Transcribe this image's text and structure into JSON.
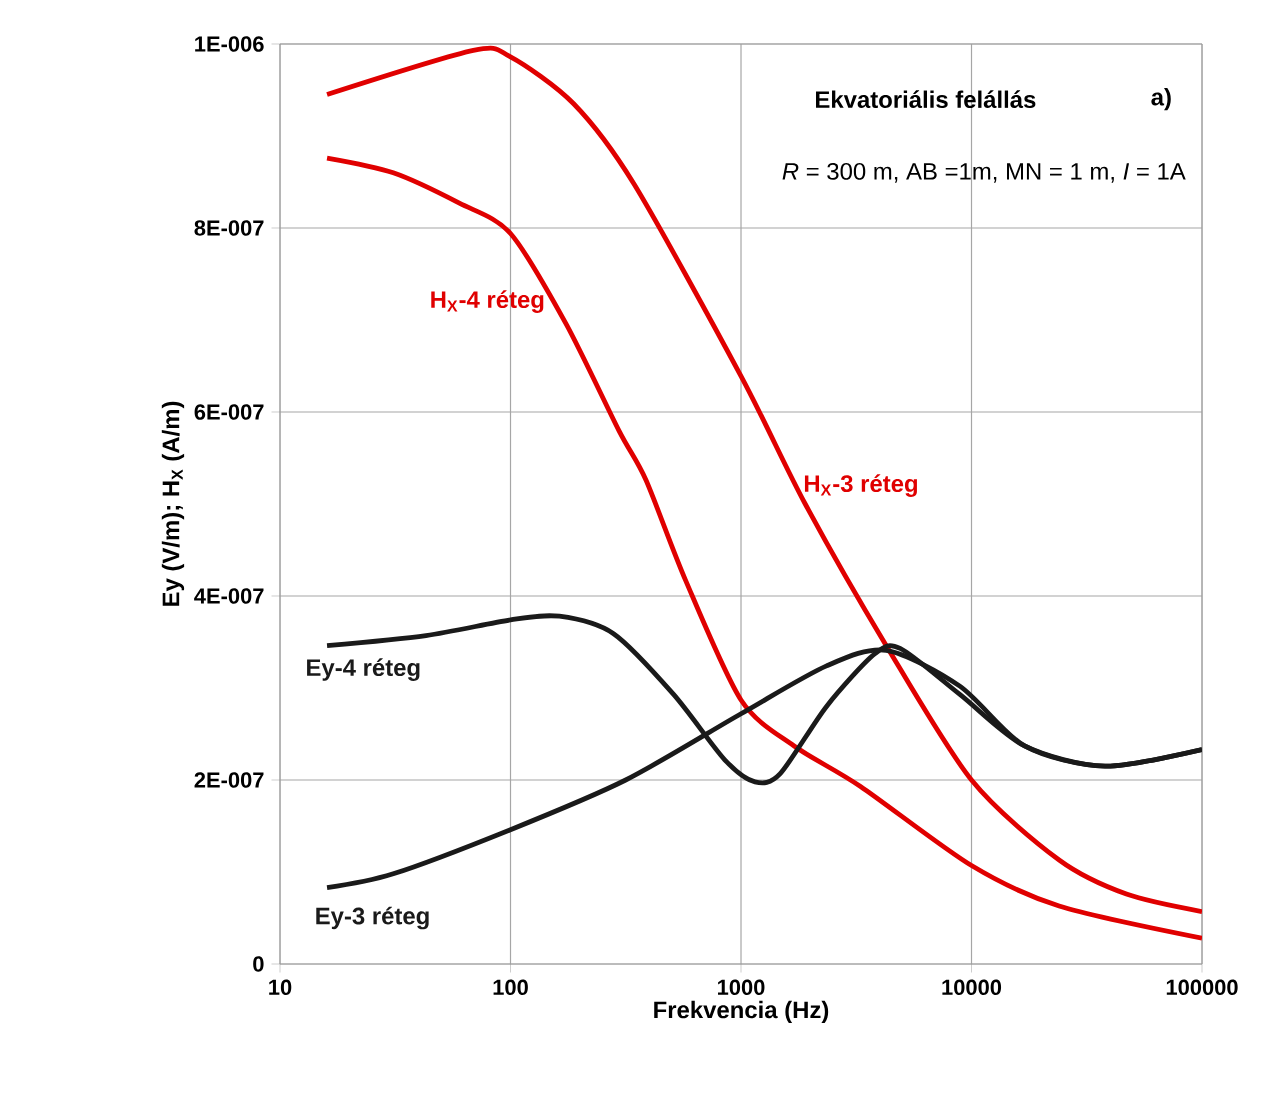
{
  "chart_data": {
    "type": "line",
    "xlabel": "Frekvencia (Hz)",
    "ylabel": "Ey (V/m);  H$_{X}$ (A/m)",
    "annotations": [
      "Ekvatoriális felállás",
      "a)",
      "*R* = 300 m, AB =1m, MN = 1 m, *I* = 1A"
    ],
    "log": "x",
    "grid": true,
    "line_style": "solid",
    "xlim": [
      10,
      100000
    ],
    "xticks": [
      10,
      100,
      1000,
      10000,
      100000
    ],
    "ylim": [
      0,
      1e-06
    ],
    "yticks": [
      0,
      {
        "value": 2e-07,
        "label": "2E-007"
      },
      {
        "value": 4e-07,
        "label": "4E-007"
      },
      {
        "value": 6e-07,
        "label": "6E-007"
      },
      {
        "value": 8e-07,
        "label": "8E-007"
      },
      {
        "value": 1e-06,
        "label": "1E-006"
      }
    ],
    "series": [
      {
        "name": "H$_{X}$-3 réteg",
        "color": "#e00000",
        "x": [
          16,
          69,
          100,
          188,
          343,
          1000,
          1900,
          4270,
          10000,
          24000,
          47000,
          100000
        ],
        "values": [
          9.45e-07,
          9.93e-07,
          9.86e-07,
          9.35e-07,
          8.48e-07,
          6.39e-07,
          5e-07,
          3.46e-07,
          2e-07,
          1.13e-07,
          7.6e-08,
          5.7e-08
        ]
      },
      {
        "name": "H$_{X}$-4 réteg",
        "color": "#e00000",
        "x": [
          16,
          31,
          60,
          100,
          174,
          295,
          387,
          575,
          1000,
          1700,
          3300,
          10000,
          24000,
          100000
        ],
        "values": [
          8.76e-07,
          8.6e-07,
          8.27e-07,
          7.94e-07,
          6.96e-07,
          5.8e-07,
          5.26e-07,
          4.17e-07,
          2.87e-07,
          2.37e-07,
          1.93e-07,
          1.07e-07,
          6.3e-08,
          2.8e-08
        ]
      },
      {
        "name": "Ey-4 réteg",
        "color": "#1a1a1a",
        "x": [
          16,
          43,
          100,
          163,
          280,
          510,
          850,
          1150,
          1480,
          2350,
          3800,
          4900,
          8900,
          17000,
          38000,
          100000
        ],
        "values": [
          3.46e-07,
          3.57e-07,
          3.74e-07,
          3.78e-07,
          3.59e-07,
          2.93e-07,
          2.22e-07,
          1.98e-07,
          2.07e-07,
          2.8e-07,
          3.37e-07,
          3.43e-07,
          2.93e-07,
          2.37e-07,
          2.15e-07,
          2.33e-07
        ]
      },
      {
        "name": "Ey-3 réteg",
        "color": "#1a1a1a",
        "x": [
          16,
          31,
          100,
          316,
          1000,
          2350,
          4270,
          8900,
          17000,
          38000,
          100000
        ],
        "values": [
          8.3e-08,
          9.8e-08,
          1.46e-07,
          2e-07,
          2.72e-07,
          3.24e-07,
          3.41e-07,
          3.02e-07,
          2.37e-07,
          2.15e-07,
          2.33e-07
        ]
      }
    ]
  }
}
